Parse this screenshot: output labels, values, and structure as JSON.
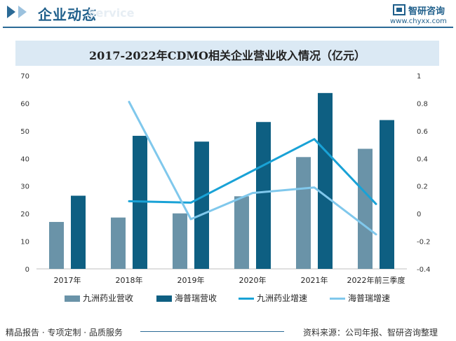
{
  "header": {
    "title": "企业动态",
    "watermark": "Service",
    "brand": "智研咨询",
    "url": "www.chyxx.com"
  },
  "chart_data": {
    "type": "bar",
    "title": "2017-2022年CDMO相关企业营业收入情况（亿元）",
    "categories": [
      "2017年",
      "2018年",
      "2019年",
      "2020年",
      "2021年",
      "2022年前三季度"
    ],
    "bar_series": [
      {
        "name": "九洲药业营收",
        "color": "#6a93a8",
        "values": [
          17,
          18.6,
          20.1,
          26.3,
          40.5,
          43.5
        ]
      },
      {
        "name": "海普瑞营收",
        "color": "#0e5f82",
        "values": [
          26.5,
          48.2,
          46.1,
          53.2,
          63.7,
          53.9
        ]
      }
    ],
    "line_series": [
      {
        "name": "九洲药业增速",
        "color": "#19a2d6",
        "values": [
          null,
          0.09,
          0.08,
          0.31,
          0.54,
          0.07
        ]
      },
      {
        "name": "海普瑞增速",
        "color": "#80c8ec",
        "values": [
          null,
          0.81,
          -0.04,
          0.15,
          0.19,
          -0.15
        ]
      }
    ],
    "y_left": {
      "min": 0,
      "max": 70,
      "ticks": [
        0,
        10,
        20,
        30,
        40,
        50,
        60,
        70
      ]
    },
    "y_right": {
      "min": -0.4,
      "max": 1,
      "ticks": [
        "-0.4",
        "-0.2",
        "0",
        "0.2",
        "0.4",
        "0.6",
        "0.8",
        "1"
      ]
    },
    "legend_position": "bottom"
  },
  "footer": {
    "left": "精品报告 · 专项定制 · 品质服务",
    "right": "资料来源：公司年报、智研咨询整理"
  },
  "colors": {
    "accent": "#1f5f8b",
    "title_bg": "#dbe9f4"
  }
}
